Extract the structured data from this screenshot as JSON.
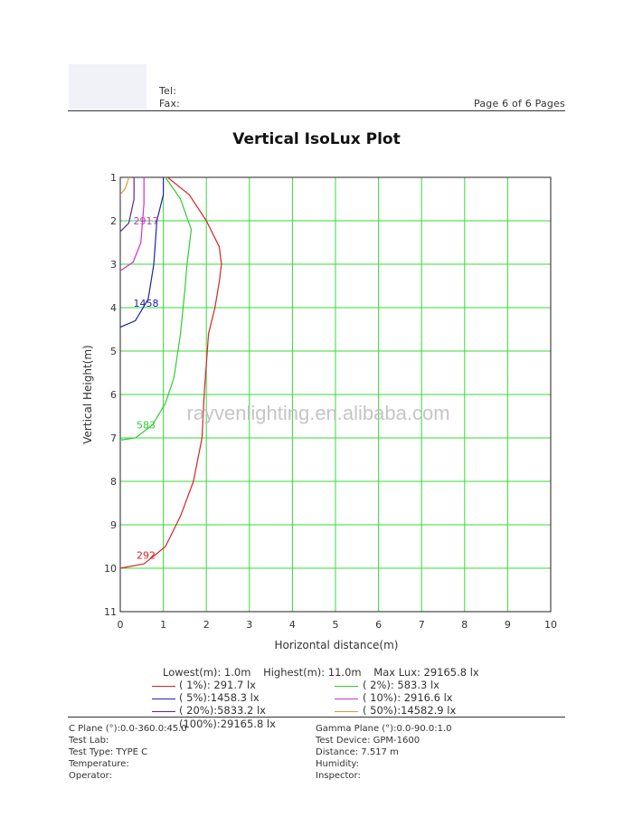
{
  "header": {
    "tel_label": "Tel:",
    "fax_label": "Fax:",
    "page_info": "Page 6 of 6 Pages"
  },
  "title": "Vertical IsoLux Plot",
  "watermark": "rayvenlighting.en.alibaba.com",
  "stats": {
    "lowest": "Lowest(m): 1.0m",
    "highest": "Highest(m): 11.0m",
    "max_lux": "Max Lux: 29165.8 lx"
  },
  "legend": [
    {
      "label": "(  1%): 291.7 lx",
      "color": "#dd2222"
    },
    {
      "label": "(  2%): 583.3 lx",
      "color": "#33cc33"
    },
    {
      "label": "(  5%):1458.3 lx",
      "color": "#2222aa"
    },
    {
      "label": "( 10%): 2916.6 lx",
      "color": "#cc33cc"
    },
    {
      "label": "( 20%):5833.2 lx",
      "color": "#662299"
    },
    {
      "label": "( 50%):14582.9 lx",
      "color": "#dd9933"
    },
    {
      "label": "(100%):29165.8 lx",
      "color": "#222222"
    }
  ],
  "footer": {
    "c_plane": "C Plane (°):0.0-360.0:45.0",
    "gamma_plane": "Gamma Plane (°):0.0-90.0:1.0",
    "test_lab": "Test Lab:",
    "test_device": "Test Device: GPM-1600",
    "test_type": "Test Type: TYPE C",
    "distance": "Distance: 7.517 m",
    "temperature": "Temperature:",
    "humidity": "Humidity:",
    "operator": "Operator:",
    "inspector": "Inspector:"
  },
  "chart_data": {
    "type": "line",
    "title": "Vertical IsoLux Plot",
    "xlabel": "Horizontal distance(m)",
    "ylabel": "Vertical Height(m)",
    "xlim": [
      0,
      10
    ],
    "ylim": [
      1,
      11
    ],
    "y_inverted": true,
    "x_ticks": [
      "0",
      "1",
      "2",
      "3",
      "4",
      "5",
      "6",
      "7",
      "8",
      "9",
      "10"
    ],
    "y_ticks": [
      "1",
      "2",
      "3",
      "4",
      "5",
      "6",
      "7",
      "8",
      "9",
      "10",
      "11"
    ],
    "grid": true,
    "grid_color": "#33dd33",
    "series": [
      {
        "name": "(  1%): 291.7 lx",
        "label": "292",
        "label_at": [
          0.6,
          9.7
        ],
        "color": "#dd2222",
        "points": [
          [
            1.1,
            1.0
          ],
          [
            1.6,
            1.4
          ],
          [
            2.0,
            2.0
          ],
          [
            2.3,
            2.6
          ],
          [
            2.35,
            3.0
          ],
          [
            2.3,
            3.4
          ],
          [
            2.2,
            4.0
          ],
          [
            2.05,
            4.6
          ],
          [
            2.0,
            5.3
          ],
          [
            1.95,
            6.0
          ],
          [
            1.9,
            7.0
          ],
          [
            1.7,
            8.0
          ],
          [
            1.4,
            8.8
          ],
          [
            1.05,
            9.5
          ],
          [
            0.55,
            9.9
          ],
          [
            0.0,
            10.0
          ]
        ]
      },
      {
        "name": "(  2%): 583.3 lx",
        "label": "583",
        "label_at": [
          0.6,
          6.7
        ],
        "color": "#33cc33",
        "points": [
          [
            1.05,
            1.0
          ],
          [
            1.4,
            1.5
          ],
          [
            1.65,
            2.2
          ],
          [
            1.6,
            2.6
          ],
          [
            1.55,
            3.0
          ],
          [
            1.5,
            3.6
          ],
          [
            1.4,
            4.6
          ],
          [
            1.25,
            5.6
          ],
          [
            1.05,
            6.2
          ],
          [
            0.75,
            6.7
          ],
          [
            0.35,
            7.0
          ],
          [
            0.0,
            7.05
          ]
        ]
      },
      {
        "name": "(  5%):1458.3 lx",
        "label": "1458",
        "label_at": [
          0.6,
          3.9
        ],
        "color": "#2222aa",
        "points": [
          [
            1.0,
            1.0
          ],
          [
            1.0,
            1.4
          ],
          [
            0.85,
            2.0
          ],
          [
            0.78,
            3.0
          ],
          [
            0.65,
            3.8
          ],
          [
            0.35,
            4.3
          ],
          [
            0.0,
            4.45
          ]
        ]
      },
      {
        "name": "( 10%): 2916.6 lx",
        "label": "2917",
        "label_at": [
          0.6,
          2.0
        ],
        "color": "#cc33cc",
        "points": [
          [
            0.55,
            1.0
          ],
          [
            0.55,
            1.6
          ],
          [
            0.48,
            2.5
          ],
          [
            0.3,
            2.95
          ],
          [
            0.0,
            3.15
          ]
        ]
      },
      {
        "name": "( 20%):5833.2 lx",
        "color": "#662299",
        "points": [
          [
            0.32,
            1.0
          ],
          [
            0.32,
            1.5
          ],
          [
            0.2,
            2.05
          ],
          [
            0.0,
            2.25
          ]
        ]
      },
      {
        "name": "( 50%):14582.9 lx",
        "color": "#dd9933",
        "points": [
          [
            0.2,
            1.0
          ],
          [
            0.12,
            1.25
          ],
          [
            0.0,
            1.4
          ]
        ]
      },
      {
        "name": "(100%):29165.8 lx",
        "color": "#222222",
        "points": []
      }
    ]
  }
}
